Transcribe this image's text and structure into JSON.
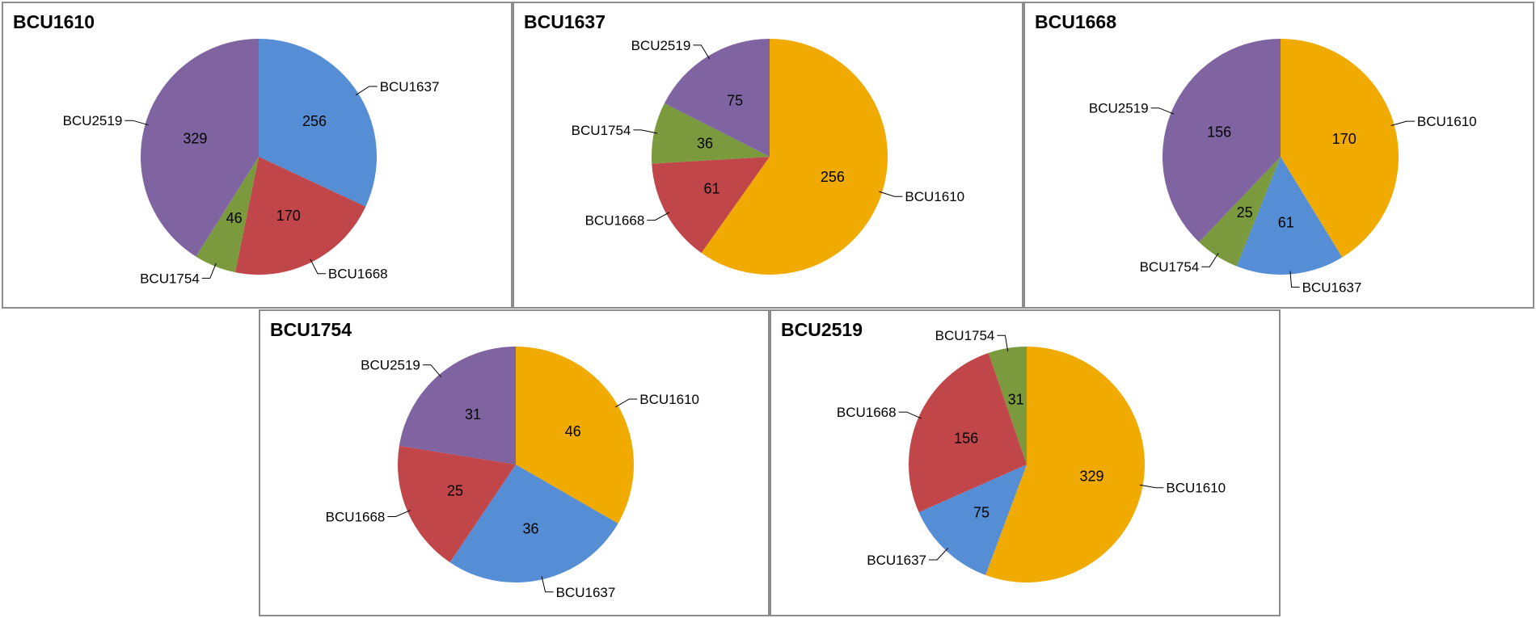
{
  "colors": {
    "BCU1610": "#f0aa00",
    "BCU1637": "#558ed5",
    "BCU1668": "#c0464a",
    "BCU1754": "#7a9a3d",
    "BCU2519": "#8064a2"
  },
  "chart_data": [
    {
      "type": "pie",
      "title": "BCU1610",
      "slices": [
        {
          "label": "BCU1637",
          "value": 256
        },
        {
          "label": "BCU1668",
          "value": 170
        },
        {
          "label": "BCU1754",
          "value": 46
        },
        {
          "label": "BCU2519",
          "value": 329
        }
      ]
    },
    {
      "type": "pie",
      "title": "BCU1637",
      "slices": [
        {
          "label": "BCU1610",
          "value": 256
        },
        {
          "label": "BCU1668",
          "value": 61
        },
        {
          "label": "BCU1754",
          "value": 36
        },
        {
          "label": "BCU2519",
          "value": 75
        }
      ]
    },
    {
      "type": "pie",
      "title": "BCU1668",
      "slices": [
        {
          "label": "BCU1610",
          "value": 170
        },
        {
          "label": "BCU1637",
          "value": 61
        },
        {
          "label": "BCU1754",
          "value": 25
        },
        {
          "label": "BCU2519",
          "value": 156
        }
      ]
    },
    {
      "type": "pie",
      "title": "BCU1754",
      "slices": [
        {
          "label": "BCU1610",
          "value": 46
        },
        {
          "label": "BCU1637",
          "value": 36
        },
        {
          "label": "BCU1668",
          "value": 25
        },
        {
          "label": "BCU2519",
          "value": 31
        }
      ]
    },
    {
      "type": "pie",
      "title": "BCU2519",
      "slices": [
        {
          "label": "BCU1610",
          "value": 329
        },
        {
          "label": "BCU1637",
          "value": 75
        },
        {
          "label": "BCU1668",
          "value": 156
        },
        {
          "label": "BCU1754",
          "value": 31
        }
      ]
    }
  ]
}
